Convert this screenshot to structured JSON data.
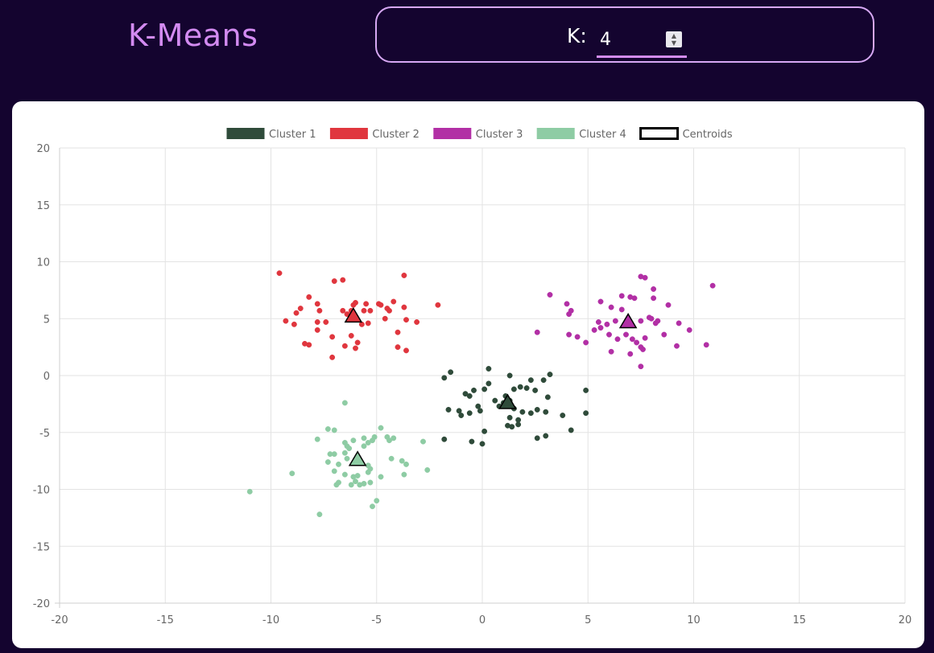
{
  "header": {
    "title": "K-Means",
    "k_label": "K:",
    "k_value": "4"
  },
  "icons": {
    "spinner_up": "chevron-up-icon",
    "spinner_down": "chevron-down-icon"
  },
  "chart_data": {
    "type": "scatter",
    "title": "",
    "xlabel": "",
    "ylabel": "",
    "xlim": [
      -20,
      20
    ],
    "ylim": [
      -20,
      20
    ],
    "x_ticks": [
      -20,
      -15,
      -10,
      -5,
      0,
      5,
      10,
      15,
      20
    ],
    "y_ticks": [
      -20,
      -15,
      -10,
      -5,
      0,
      5,
      10,
      15,
      20
    ],
    "x_tick_labels": [
      "-20",
      "-15",
      "-10",
      "-5",
      "0",
      "5",
      "10",
      "15",
      "20"
    ],
    "y_tick_labels": [
      "-20",
      "-15",
      "-10",
      "-5",
      "0",
      "5",
      "10",
      "15",
      "20"
    ],
    "grid": true,
    "legend_position": "top-center",
    "series": [
      {
        "name": "Cluster 1",
        "color": "#2f4b3a",
        "points": [
          [
            -1.8,
            -0.2
          ],
          [
            -1.5,
            0.3
          ],
          [
            0.3,
            0.6
          ],
          [
            1.3,
            0
          ],
          [
            2.3,
            -0.4
          ],
          [
            2.9,
            -0.4
          ],
          [
            3.2,
            0.1
          ],
          [
            -0.8,
            -1.6
          ],
          [
            -0.6,
            -1.8
          ],
          [
            -0.4,
            -1.3
          ],
          [
            0.1,
            -1.2
          ],
          [
            0.3,
            -0.7
          ],
          [
            1.1,
            -1.8
          ],
          [
            1.5,
            -1.2
          ],
          [
            1.8,
            -1.0
          ],
          [
            2.1,
            -1.1
          ],
          [
            2.5,
            -1.3
          ],
          [
            3.1,
            -1.9
          ],
          [
            4.9,
            -1.3
          ],
          [
            -1.6,
            -3.0
          ],
          [
            -1.0,
            -3.5
          ],
          [
            -1.1,
            -3.1
          ],
          [
            -0.6,
            -3.3
          ],
          [
            -0.2,
            -2.7
          ],
          [
            -0.1,
            -3.1
          ],
          [
            0.8,
            -2.7
          ],
          [
            1.3,
            -2.2
          ],
          [
            1.5,
            -2.9
          ],
          [
            1.9,
            -3.2
          ],
          [
            2.3,
            -3.3
          ],
          [
            2.6,
            -3.0
          ],
          [
            3.0,
            -3.2
          ],
          [
            3.8,
            -3.5
          ],
          [
            4.9,
            -3.3
          ],
          [
            1.3,
            -3.7
          ],
          [
            1.7,
            -3.9
          ],
          [
            1.2,
            -4.4
          ],
          [
            1.4,
            -4.5
          ],
          [
            0.1,
            -4.9
          ],
          [
            1.7,
            -4.3
          ],
          [
            4.2,
            -4.8
          ],
          [
            -1.8,
            -5.6
          ],
          [
            -0.5,
            -5.8
          ],
          [
            0,
            -6.0
          ],
          [
            2.6,
            -5.5
          ],
          [
            3.0,
            -5.3
          ],
          [
            1.0,
            -2.4
          ],
          [
            0.6,
            -2.2
          ]
        ]
      },
      {
        "name": "Cluster 2",
        "color": "#e0363e",
        "points": [
          [
            -9.6,
            9.0
          ],
          [
            -6.6,
            8.4
          ],
          [
            -7.0,
            8.3
          ],
          [
            -3.7,
            8.8
          ],
          [
            -8.2,
            6.9
          ],
          [
            -7.8,
            6.3
          ],
          [
            -6.1,
            6.2
          ],
          [
            -6.0,
            6.4
          ],
          [
            -5.5,
            6.3
          ],
          [
            -4.9,
            6.3
          ],
          [
            -4.8,
            6.2
          ],
          [
            -4.2,
            6.5
          ],
          [
            -2.1,
            6.2
          ],
          [
            -8.6,
            5.9
          ],
          [
            -8.8,
            5.5
          ],
          [
            -7.7,
            5.7
          ],
          [
            -6.6,
            5.7
          ],
          [
            -6.4,
            5.4
          ],
          [
            -6.2,
            5.7
          ],
          [
            -5.6,
            5.7
          ],
          [
            -5.3,
            5.7
          ],
          [
            -4.5,
            5.9
          ],
          [
            -4.4,
            5.7
          ],
          [
            -3.7,
            6.0
          ],
          [
            -9.3,
            4.8
          ],
          [
            -8.9,
            4.5
          ],
          [
            -7.8,
            4.7
          ],
          [
            -7.4,
            4.7
          ],
          [
            -5.7,
            4.5
          ],
          [
            -5.4,
            4.6
          ],
          [
            -4.6,
            5.0
          ],
          [
            -3.6,
            4.9
          ],
          [
            -3.1,
            4.7
          ],
          [
            -7.8,
            4.0
          ],
          [
            -7.1,
            3.4
          ],
          [
            -6.2,
            3.5
          ],
          [
            -4.0,
            3.8
          ],
          [
            -8.4,
            2.8
          ],
          [
            -8.2,
            2.7
          ],
          [
            -6.5,
            2.6
          ],
          [
            -5.9,
            2.9
          ],
          [
            -6.0,
            2.4
          ],
          [
            -4.0,
            2.5
          ],
          [
            -3.6,
            2.2
          ],
          [
            -7.1,
            1.6
          ]
        ]
      },
      {
        "name": "Cluster 3",
        "color": "#b22fa5",
        "points": [
          [
            10.9,
            7.9
          ],
          [
            7.5,
            8.7
          ],
          [
            7.7,
            8.6
          ],
          [
            3.2,
            7.1
          ],
          [
            6.6,
            7.0
          ],
          [
            7.0,
            6.9
          ],
          [
            7.2,
            6.8
          ],
          [
            8.1,
            7.6
          ],
          [
            8.1,
            6.8
          ],
          [
            5.6,
            6.5
          ],
          [
            6.1,
            6.0
          ],
          [
            4.0,
            6.3
          ],
          [
            4.2,
            5.7
          ],
          [
            4.1,
            5.4
          ],
          [
            8.8,
            6.2
          ],
          [
            6.6,
            5.8
          ],
          [
            6.3,
            4.8
          ],
          [
            7.9,
            5.1
          ],
          [
            8.0,
            5.0
          ],
          [
            8.3,
            4.8
          ],
          [
            8.2,
            4.6
          ],
          [
            5.5,
            4.7
          ],
          [
            5.6,
            4.2
          ],
          [
            5.9,
            4.5
          ],
          [
            7.5,
            4.8
          ],
          [
            9.3,
            4.6
          ],
          [
            9.8,
            4.0
          ],
          [
            5.3,
            4.0
          ],
          [
            2.6,
            3.8
          ],
          [
            4.1,
            3.6
          ],
          [
            4.5,
            3.4
          ],
          [
            4.9,
            2.9
          ],
          [
            6.0,
            3.6
          ],
          [
            6.4,
            3.2
          ],
          [
            6.8,
            3.6
          ],
          [
            7.1,
            3.2
          ],
          [
            7.3,
            2.9
          ],
          [
            7.5,
            2.5
          ],
          [
            7.7,
            3.3
          ],
          [
            7.6,
            2.3
          ],
          [
            8.6,
            3.6
          ],
          [
            9.2,
            2.6
          ],
          [
            10.6,
            2.7
          ],
          [
            6.1,
            2.1
          ],
          [
            7.0,
            1.9
          ],
          [
            7.5,
            0.8
          ]
        ]
      },
      {
        "name": "Cluster 4",
        "color": "#8ecca4",
        "points": [
          [
            -6.5,
            -2.4
          ],
          [
            -4.8,
            -4.6
          ],
          [
            -7.3,
            -4.7
          ],
          [
            -7.0,
            -4.8
          ],
          [
            -7.8,
            -5.6
          ],
          [
            -6.5,
            -5.9
          ],
          [
            -6.1,
            -5.7
          ],
          [
            -5.6,
            -5.5
          ],
          [
            -5.4,
            -5.9
          ],
          [
            -5.2,
            -5.7
          ],
          [
            -5.1,
            -5.4
          ],
          [
            -4.5,
            -5.4
          ],
          [
            -4.4,
            -5.7
          ],
          [
            -4.2,
            -5.5
          ],
          [
            -2.8,
            -5.8
          ],
          [
            -6.4,
            -6.2
          ],
          [
            -6.3,
            -6.4
          ],
          [
            -5.6,
            -6.2
          ],
          [
            -6.5,
            -6.8
          ],
          [
            -7.2,
            -6.9
          ],
          [
            -7.0,
            -6.9
          ],
          [
            -6.4,
            -7.3
          ],
          [
            -5.8,
            -7.5
          ],
          [
            -7.3,
            -7.6
          ],
          [
            -6.8,
            -7.8
          ],
          [
            -5.4,
            -7.9
          ],
          [
            -5.3,
            -8.2
          ],
          [
            -4.3,
            -7.3
          ],
          [
            -3.8,
            -7.5
          ],
          [
            -3.6,
            -7.8
          ],
          [
            -9.0,
            -8.6
          ],
          [
            -7.0,
            -8.4
          ],
          [
            -6.5,
            -8.7
          ],
          [
            -6.1,
            -8.9
          ],
          [
            -5.9,
            -8.8
          ],
          [
            -5.4,
            -8.5
          ],
          [
            -4.8,
            -8.9
          ],
          [
            -3.7,
            -8.7
          ],
          [
            -2.6,
            -8.3
          ],
          [
            -6.9,
            -9.6
          ],
          [
            -6.8,
            -9.4
          ],
          [
            -6.2,
            -9.6
          ],
          [
            -6.0,
            -9.3
          ],
          [
            -5.8,
            -9.6
          ],
          [
            -5.6,
            -9.5
          ],
          [
            -5.3,
            -9.4
          ],
          [
            -5.0,
            -11.0
          ],
          [
            -5.2,
            -11.5
          ],
          [
            -11.0,
            -10.2
          ],
          [
            -7.7,
            -12.2
          ]
        ]
      }
    ],
    "centroids": {
      "name": "Centroids",
      "points": [
        {
          "cluster": "Cluster 1",
          "x": 1.2,
          "y": -2.4
        },
        {
          "cluster": "Cluster 2",
          "x": -6.1,
          "y": 5.2
        },
        {
          "cluster": "Cluster 3",
          "x": 6.9,
          "y": 4.7
        },
        {
          "cluster": "Cluster 4",
          "x": -5.9,
          "y": -7.4
        }
      ]
    }
  }
}
